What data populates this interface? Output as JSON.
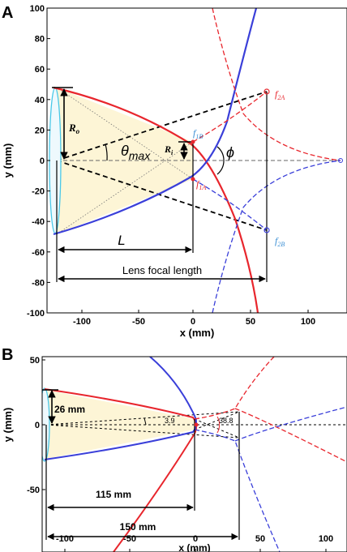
{
  "panel_a": {
    "letter": "A",
    "xlabel": "x (mm)",
    "ylabel": "y (mm)",
    "xticks": [
      "-100",
      "-50",
      "0",
      "50",
      "100"
    ],
    "yticks": [
      "100",
      "80",
      "60",
      "40",
      "20",
      "0",
      "-20",
      "-40",
      "-60",
      "-80",
      "-100"
    ],
    "labels": {
      "R0": "R",
      "R0_sub": "o",
      "R1": "R",
      "R1_sub": "i",
      "theta": "θ",
      "theta_sub": "max",
      "phi": "ϕ",
      "L": "L",
      "focal": "Lens focal length",
      "f2A": "f",
      "f2A_sub": "2A",
      "f1B": "f",
      "f1B_sub": "1B",
      "f1A": "f",
      "f1A_sub": "1A",
      "f2B": "f",
      "f2B_sub": "2B"
    }
  },
  "panel_b": {
    "letter": "B",
    "xlabel": "x (mm)",
    "ylabel": "y (mm)",
    "xticks": [
      "-100",
      "-50",
      "0",
      "50",
      "100"
    ],
    "yticks": [
      "50",
      "0",
      "-50"
    ],
    "labels": {
      "r26": "26 mm",
      "a39": "3.9",
      "a388": "38.8",
      "d115": "115 mm",
      "d150": "150 mm"
    }
  },
  "colors": {
    "red": "#e8262d",
    "blue": "#3a3fd9",
    "cyan": "#49c8e8",
    "fill": "#fdf5d6",
    "f_red": "#e8262d",
    "f_blue": "#3b8fd4"
  }
}
